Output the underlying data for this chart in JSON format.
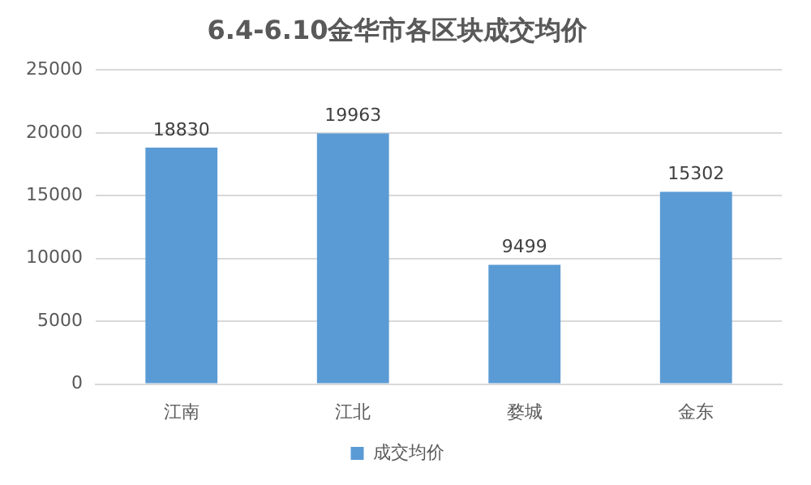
{
  "chart_data": {
    "type": "bar",
    "title": "6.4-6.10金华市各区块成交均价",
    "categories": [
      "江南",
      "江北",
      "婺城",
      "金东"
    ],
    "series": [
      {
        "name": "成交均价",
        "color": "#5b9bd5",
        "values": [
          18830,
          19963,
          9499,
          15302
        ]
      }
    ],
    "ylim": [
      0,
      25000
    ],
    "yticks": [
      0,
      5000,
      10000,
      15000,
      20000,
      25000
    ],
    "grid": "y",
    "legend": "bottom",
    "data_labels": true
  }
}
